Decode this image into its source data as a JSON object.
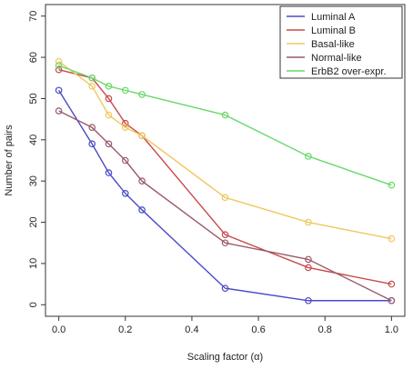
{
  "chart_data": {
    "type": "line",
    "xlabel": "Scaling factor (α)",
    "ylabel": "Number of pairs",
    "xlim": [
      0.0,
      1.0
    ],
    "ylim": [
      0,
      70
    ],
    "xticks": [
      "0.0",
      "0.2",
      "0.4",
      "0.6",
      "0.8",
      "1.0"
    ],
    "xtick_values": [
      0.0,
      0.2,
      0.4,
      0.6,
      0.8,
      1.0
    ],
    "yticks": [
      "0",
      "10",
      "20",
      "30",
      "40",
      "50",
      "60",
      "70"
    ],
    "ytick_values": [
      0,
      10,
      20,
      30,
      40,
      50,
      60,
      70
    ],
    "grid": false,
    "legend_position": "top-right",
    "x": [
      0.0,
      0.1,
      0.15,
      0.2,
      0.25,
      0.5,
      0.75,
      1.0
    ],
    "series": [
      {
        "name": "Luminal A",
        "color": "#4a4ac8",
        "values": [
          52,
          39,
          32,
          27,
          23,
          4,
          1,
          1
        ]
      },
      {
        "name": "Luminal B",
        "color": "#c84a4a",
        "values": [
          57,
          55,
          50,
          44,
          41,
          17,
          9,
          5
        ]
      },
      {
        "name": "Basal-like",
        "color": "#f0c860",
        "values": [
          59,
          53,
          46,
          43,
          41,
          26,
          20,
          16
        ]
      },
      {
        "name": "Normal-like",
        "color": "#9a5a6a",
        "values": [
          47,
          43,
          39,
          35,
          30,
          15,
          11,
          1
        ]
      },
      {
        "name": "ErbB2 over-expr.",
        "color": "#6ad86a",
        "values": [
          58,
          55,
          53,
          52,
          51,
          46,
          36,
          29
        ]
      }
    ]
  }
}
